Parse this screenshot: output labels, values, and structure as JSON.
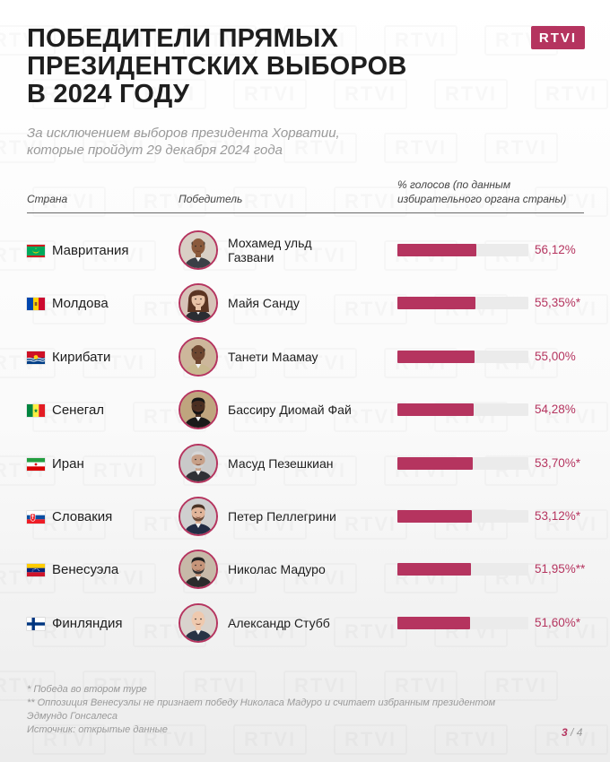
{
  "brand": {
    "logo_text": "RTVI",
    "accent": "#b5345f",
    "watermark": "RTVI"
  },
  "title_lines": [
    "ПОБЕДИТЕЛИ ПРЯМЫХ",
    "ПРЕЗИДЕНТСКИХ ВЫБОРОВ",
    "В 2024 ГОДУ"
  ],
  "subtitle_lines": [
    "За исключением выборов президента Хорватии,",
    "которые пройдут 29 декабря 2024 года"
  ],
  "columns": {
    "country": "Страна",
    "winner": "Победитель",
    "votes_line1": "% голосов (по данным",
    "votes_line2": "избирательного органа страны)"
  },
  "rows": [
    {
      "country": "Мавритания",
      "flag": "mauritania-flag",
      "winner_lines": [
        "Мохамед ульд",
        "Газвани"
      ],
      "value_label": "56,12%"
    },
    {
      "country": "Молдова",
      "flag": "moldova-flag",
      "winner_lines": [
        "Майя Санду"
      ],
      "value_label": "55,35%*"
    },
    {
      "country": "Кирибати",
      "flag": "kiribati-flag",
      "winner_lines": [
        "Танети Маамау"
      ],
      "value_label": "55,00%"
    },
    {
      "country": "Сенегал",
      "flag": "senegal-flag",
      "winner_lines": [
        "Бассиру Диомай Фай"
      ],
      "value_label": "54,28%"
    },
    {
      "country": "Иран",
      "flag": "iran-flag",
      "winner_lines": [
        "Масуд Пезешкиан"
      ],
      "value_label": "53,70%*"
    },
    {
      "country": "Словакия",
      "flag": "slovakia-flag",
      "winner_lines": [
        "Петер Пеллегрини"
      ],
      "value_label": "53,12%*"
    },
    {
      "country": "Венесуэла",
      "flag": "venezuela-flag",
      "winner_lines": [
        "Николас Мадуро"
      ],
      "value_label": "51,95%**"
    },
    {
      "country": "Финляндия",
      "flag": "finland-flag",
      "winner_lines": [
        "Александр Стубб"
      ],
      "value_label": "51,60%*"
    }
  ],
  "chart_data": {
    "type": "bar",
    "orientation": "horizontal",
    "categories": [
      "Мавритания",
      "Молдова",
      "Кирибати",
      "Сенегал",
      "Иран",
      "Словакия",
      "Венесуэла",
      "Финляндия"
    ],
    "values": [
      56.12,
      55.35,
      55.0,
      54.28,
      53.7,
      53.12,
      51.95,
      51.6
    ],
    "xlim": [
      0,
      93
    ],
    "bar_color": "#b5345f",
    "track_color": "#ebebeb",
    "grid": false
  },
  "notes": [
    "* Победа во втором туре",
    "** Оппозиция Венесуэлы не признает победу Николаса Мадуро и считает избранным президентом",
    "Эдмундо Гонсалеса",
    "Источник: открытые данные"
  ],
  "pager": {
    "current": "3",
    "separator": " / ",
    "total": "4"
  }
}
